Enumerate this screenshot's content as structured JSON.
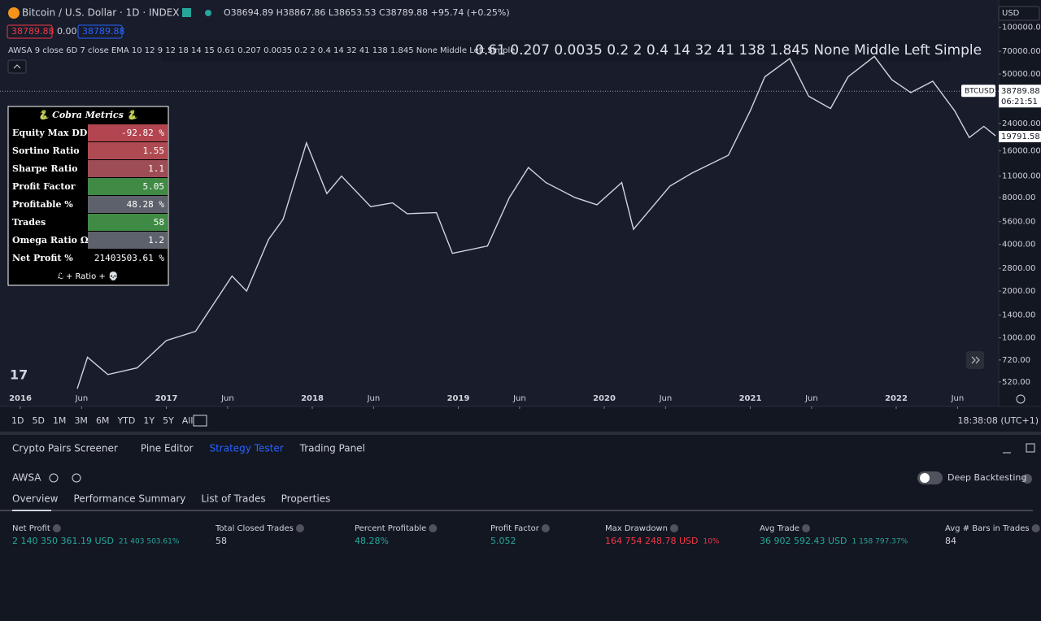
{
  "header": {
    "symbol": "Bitcoin / U.S. Dollar · 1D · INDEX",
    "ohlc": "O38694.89 H38867.86 L38653.53 C38789.88 +95.74 (+0.25%)",
    "currency": "USD",
    "price_sell": "38789.88",
    "spread": "0.00",
    "price_buy": "38789.88",
    "indicator": "AWSA 9 close 6D 7 close EMA 10 12 9 12 18 14 15 0.61 0.207 0.0035 0.2 2 0.4 14 32 41 138 1.845 None Middle Left Simple",
    "indicator_overlay": "0.61 0.207 0.0035 0.2 2 0.4 14 32 41 138 1.845 None Middle Left Simple"
  },
  "chart_data": {
    "type": "line",
    "color": "#d1d4dc",
    "log_scale": true,
    "x": [
      2016.39,
      2016.46,
      2016.6,
      2016.8,
      2017.0,
      2017.2,
      2017.45,
      2017.55,
      2017.7,
      2017.8,
      2017.96,
      2018.1,
      2018.2,
      2018.4,
      2018.55,
      2018.65,
      2018.85,
      2018.96,
      2019.2,
      2019.35,
      2019.48,
      2019.6,
      2019.8,
      2019.95,
      2020.12,
      2020.2,
      2020.45,
      2020.6,
      2020.85,
      2021.0,
      2021.1,
      2021.27,
      2021.4,
      2021.55,
      2021.67,
      2021.85,
      2021.97,
      2022.1,
      2022.25,
      2022.4,
      2022.5,
      2022.6,
      2022.68
    ],
    "values": [
      470,
      750,
      580,
      640,
      960,
      1100,
      2500,
      2000,
      4300,
      5800,
      18000,
      8500,
      11000,
      7000,
      7400,
      6300,
      6400,
      3500,
      3900,
      8000,
      12500,
      10000,
      8000,
      7200,
      10000,
      5000,
      9500,
      11500,
      15000,
      29000,
      48000,
      63000,
      36000,
      30000,
      48000,
      65000,
      46000,
      38000,
      45000,
      29000,
      19500,
      23000,
      20000
    ],
    "xlim": [
      2016,
      2022.7
    ],
    "xticks": [
      {
        "value": 2016,
        "label": "2016"
      },
      {
        "value": 2016.42,
        "label": "Jun"
      },
      {
        "value": 2017,
        "label": "2017"
      },
      {
        "value": 2017.42,
        "label": "Jun"
      },
      {
        "value": 2018,
        "label": "2018"
      },
      {
        "value": 2018.42,
        "label": "Jun"
      },
      {
        "value": 2019,
        "label": "2019"
      },
      {
        "value": 2019.42,
        "label": "Jun"
      },
      {
        "value": 2020,
        "label": "2020"
      },
      {
        "value": 2020.42,
        "label": "Jun"
      },
      {
        "value": 2021,
        "label": "2021"
      },
      {
        "value": 2021.42,
        "label": "Jun"
      },
      {
        "value": 2022,
        "label": "2022"
      },
      {
        "value": 2022.42,
        "label": "Jun"
      }
    ],
    "ylim": [
      460,
      133000
    ],
    "yticks": [
      {
        "value": 100000,
        "label": "100000.00"
      },
      {
        "value": 70000,
        "label": "70000.00"
      },
      {
        "value": 50000,
        "label": "50000.00"
      },
      {
        "value": 24000,
        "label": "24000.00"
      },
      {
        "value": 16000,
        "label": "16000.00"
      },
      {
        "value": 11000,
        "label": "11000.00"
      },
      {
        "value": 8000,
        "label": "8000.00"
      },
      {
        "value": 5600,
        "label": "5600.00"
      },
      {
        "value": 4000,
        "label": "4000.00"
      },
      {
        "value": 2800,
        "label": "2800.00"
      },
      {
        "value": 2000,
        "label": "2000.00"
      },
      {
        "value": 1400,
        "label": "1400.00"
      },
      {
        "value": 1000,
        "label": "1000.00"
      },
      {
        "value": 720,
        "label": "720.00"
      },
      {
        "value": 520,
        "label": "520.00"
      }
    ],
    "last_price": {
      "symbol": "BTCUSD",
      "value": 38789.88,
      "countdown": "06:21:51"
    },
    "low_price": 19791.58
  },
  "metrics_table": {
    "title": "🐍 Cobra Metrics 🐍",
    "rows": [
      {
        "label": "Equity Max DD",
        "value": "-92.82 %",
        "color": "#b2454f"
      },
      {
        "label": "Sortino Ratio",
        "value": "1.55",
        "color": "#b04a52"
      },
      {
        "label": "Sharpe Ratio",
        "value": "1.1",
        "color": "#9e4c56"
      },
      {
        "label": "Profit Factor",
        "value": "5.05",
        "color": "#3f8a44"
      },
      {
        "label": "Profitable %",
        "value": "48.28 %",
        "color": "#5d616b"
      },
      {
        "label": "Trades",
        "value": "58",
        "color": "#3f8a44"
      },
      {
        "label": "Omega Ratio Ω",
        "value": "1.2",
        "color": "#5d616b"
      },
      {
        "label": "Net Profit %",
        "value": "21403503.61 %",
        "color": "#000000"
      }
    ],
    "footer": "ℒ + Ratio + 💀"
  },
  "toolbar": {
    "ranges": [
      "1D",
      "5D",
      "1M",
      "3M",
      "6M",
      "YTD",
      "1Y",
      "5Y",
      "All"
    ],
    "clock": "18:38:08 (UTC+1)"
  },
  "panel": {
    "tabs": [
      "Crypto Pairs Screener",
      "Pine Editor",
      "Strategy Tester",
      "Trading Panel"
    ],
    "active_tab": "Strategy Tester",
    "strategy": "AWSA",
    "toggle": "Deep Backtesting",
    "subtabs": [
      "Overview",
      "Performance Summary",
      "List of Trades",
      "Properties"
    ],
    "metrics": [
      {
        "label": "Net Profit",
        "value": "2 140 350 361.19 USD",
        "sub": "21 403 503.61%",
        "tone": "positive"
      },
      {
        "label": "Total Closed Trades",
        "value": "58",
        "tone": "neutral"
      },
      {
        "label": "Percent Profitable",
        "value": "48.28%",
        "tone": "positive"
      },
      {
        "label": "Profit Factor",
        "value": "5.052",
        "tone": "positive"
      },
      {
        "label": "Max Drawdown",
        "value": "164 754 248.78 USD",
        "sub": "10%",
        "tone": "negative"
      },
      {
        "label": "Avg Trade",
        "value": "36 902 592.43 USD",
        "sub": "1 158 797.37%",
        "tone": "positive"
      },
      {
        "label": "Avg # Bars in Trades",
        "value": "84",
        "tone": "neutral"
      }
    ]
  }
}
